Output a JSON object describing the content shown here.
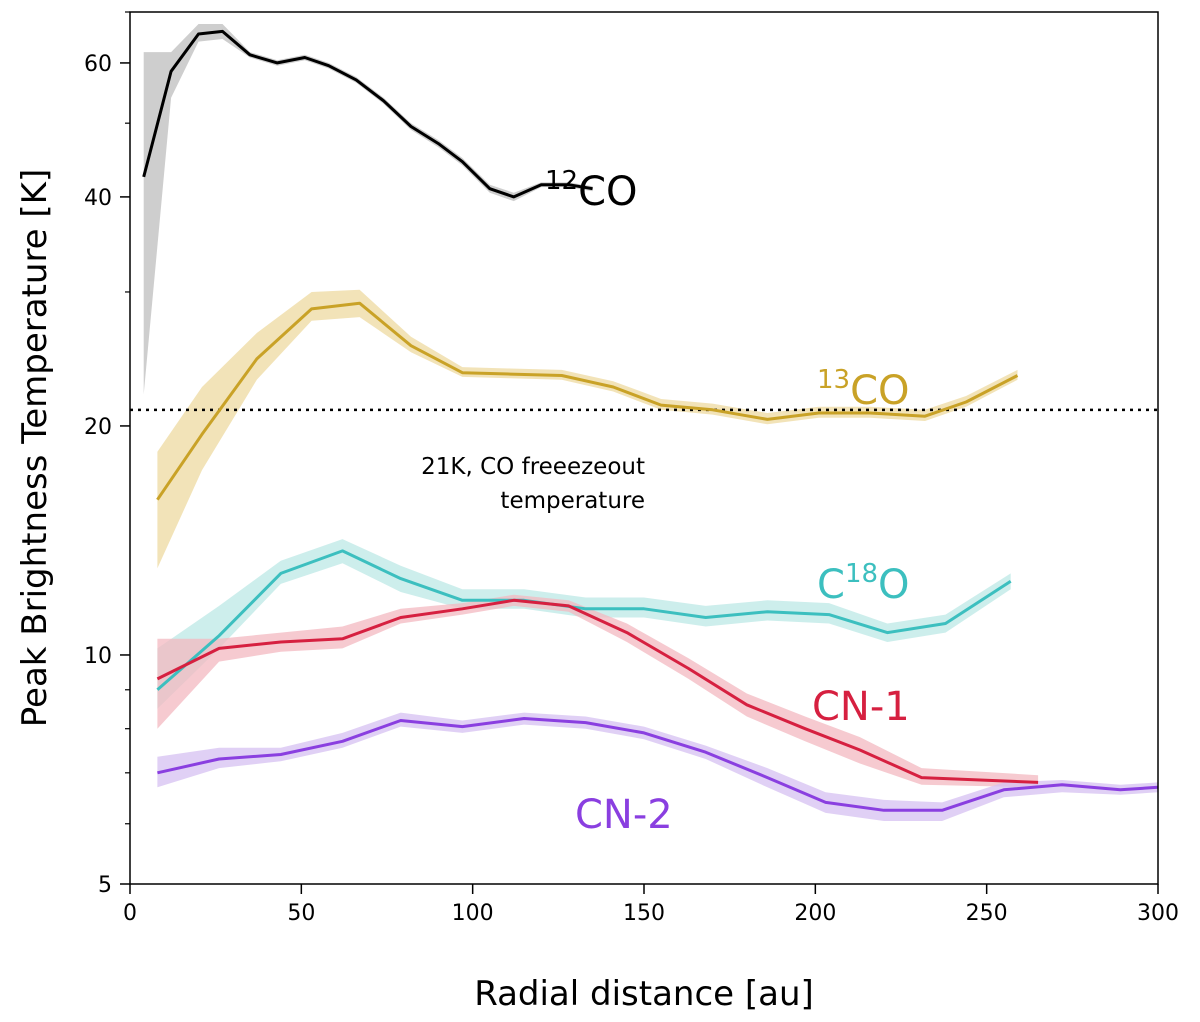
{
  "chart_data": {
    "type": "line",
    "xlabel": "Radial distance [au]",
    "ylabel": "Peak Brightness Temperature [K]",
    "xlim": [
      0,
      300
    ],
    "ylim": [
      5,
      70
    ],
    "yscale": "log",
    "grid": false,
    "x_ticks": [
      0,
      50,
      100,
      150,
      200,
      250,
      300
    ],
    "x_tick_labels": [
      "0",
      "50",
      "100",
      "150",
      "200",
      "250",
      "300"
    ],
    "y_ticks": [
      5,
      10,
      20,
      40,
      60
    ],
    "y_tick_labels": [
      "5",
      "10",
      "20",
      "40",
      "60"
    ],
    "threshold": {
      "y": 21,
      "style": "dotted",
      "label_lines": [
        "21K, CO freeezeout",
        "temperature"
      ]
    },
    "series": [
      {
        "name": "12CO",
        "label_base": "",
        "label_sup": "12",
        "label_tail": "CO",
        "color": "#000000",
        "band_color": "#bdbdbd",
        "x": [
          4,
          12,
          20,
          27,
          35,
          43,
          51,
          58,
          66,
          74,
          82,
          90,
          97,
          105,
          112,
          120,
          128,
          135
        ],
        "y": [
          42.5,
          58.5,
          65.5,
          66.0,
          61.5,
          60.0,
          61.0,
          59.5,
          57.0,
          53.5,
          49.5,
          47.0,
          44.5,
          41.0,
          40.0,
          41.5,
          41.5,
          41.0
        ],
        "y_lo": [
          22,
          54,
          64,
          64.5,
          61,
          59.5,
          60.5,
          59,
          56.5,
          53,
          49,
          46.5,
          44,
          40.5,
          39.5,
          41.2,
          41.2,
          40.7
        ],
        "y_hi": [
          62,
          62,
          67.5,
          67.5,
          62,
          60.5,
          61.5,
          60,
          57.5,
          54,
          50,
          47.5,
          45,
          41.5,
          40.5,
          41.8,
          41.8,
          41.3
        ]
      },
      {
        "name": "13CO",
        "label_base": "",
        "label_sup": "13",
        "label_tail": "CO",
        "color": "#c9a227",
        "band_color": "#eed9a0",
        "x": [
          8,
          21,
          37,
          53,
          67,
          82,
          97,
          111,
          126,
          141,
          155,
          170,
          186,
          201,
          216,
          232,
          244,
          259
        ],
        "y": [
          16.0,
          19.5,
          24.5,
          28.5,
          29.0,
          25.5,
          23.5,
          23.4,
          23.3,
          22.5,
          21.3,
          21.0,
          20.4,
          20.8,
          20.8,
          20.6,
          21.5,
          23.3
        ],
        "y_lo": [
          13,
          17.5,
          23,
          27.5,
          27.8,
          25.0,
          23.2,
          23.1,
          23.0,
          22.2,
          21.0,
          20.7,
          20.1,
          20.5,
          20.5,
          20.3,
          21.2,
          23.0
        ],
        "y_hi": [
          18.5,
          22.5,
          26.5,
          30,
          30.2,
          26.2,
          23.9,
          23.8,
          23.7,
          22.9,
          21.7,
          21.4,
          20.8,
          21.2,
          21.2,
          21.0,
          21.9,
          23.7
        ]
      },
      {
        "name": "C18O",
        "label_base": "C",
        "label_sup": "18",
        "label_tail": "O",
        "color": "#3cbfbf",
        "band_color": "#bce8e6",
        "x": [
          8,
          26,
          44,
          62,
          79,
          97,
          115,
          133,
          150,
          168,
          186,
          204,
          221,
          238,
          257
        ],
        "y": [
          9.0,
          10.6,
          12.8,
          13.7,
          12.6,
          11.8,
          11.8,
          11.5,
          11.5,
          11.2,
          11.4,
          11.3,
          10.7,
          11.0,
          12.5
        ],
        "y_lo": [
          8.5,
          10.2,
          12.4,
          13.2,
          12.1,
          11.5,
          11.5,
          11.2,
          11.2,
          10.9,
          11.1,
          11.0,
          10.4,
          10.7,
          12.2
        ],
        "y_hi": [
          10.2,
          11.6,
          13.3,
          14.2,
          13.1,
          12.2,
          12.2,
          11.9,
          11.9,
          11.6,
          11.8,
          11.7,
          11.0,
          11.3,
          12.8
        ]
      },
      {
        "name": "CN-1",
        "label_base": "CN-1",
        "label_sup": "",
        "label_tail": "",
        "color": "#d62040",
        "band_color": "#f3b8c0",
        "x": [
          8,
          26,
          44,
          62,
          79,
          97,
          112,
          128,
          145,
          163,
          180,
          197,
          213,
          231,
          265
        ],
        "y": [
          9.3,
          10.2,
          10.4,
          10.5,
          11.2,
          11.5,
          11.8,
          11.6,
          10.7,
          9.6,
          8.6,
          8.0,
          7.5,
          6.9,
          6.8
        ],
        "y_lo": [
          8.0,
          9.8,
          10.1,
          10.2,
          11.0,
          11.3,
          11.6,
          11.4,
          10.4,
          9.3,
          8.3,
          7.7,
          7.2,
          6.75,
          6.7
        ],
        "y_hi": [
          10.5,
          10.5,
          10.7,
          10.9,
          11.5,
          11.7,
          12.0,
          11.8,
          11.0,
          9.9,
          8.9,
          8.3,
          7.8,
          7.1,
          6.95
        ]
      },
      {
        "name": "CN-2",
        "label_base": "CN-2",
        "label_sup": "",
        "label_tail": "",
        "color": "#8a3fe0",
        "band_color": "#d6c0f2",
        "x": [
          8,
          26,
          44,
          62,
          79,
          97,
          115,
          133,
          150,
          168,
          186,
          203,
          220,
          237,
          255,
          272,
          289,
          300
        ],
        "y": [
          7.0,
          7.3,
          7.4,
          7.7,
          8.2,
          8.05,
          8.25,
          8.15,
          7.9,
          7.45,
          6.9,
          6.4,
          6.25,
          6.25,
          6.65,
          6.75,
          6.65,
          6.7
        ],
        "y_lo": [
          6.7,
          7.1,
          7.25,
          7.55,
          8.05,
          7.9,
          8.1,
          8.0,
          7.75,
          7.3,
          6.7,
          6.2,
          6.05,
          6.05,
          6.5,
          6.6,
          6.55,
          6.6
        ],
        "y_hi": [
          7.35,
          7.55,
          7.55,
          7.9,
          8.4,
          8.2,
          8.4,
          8.3,
          8.05,
          7.6,
          7.1,
          6.6,
          6.45,
          6.4,
          6.8,
          6.85,
          6.75,
          6.8
        ]
      }
    ]
  }
}
